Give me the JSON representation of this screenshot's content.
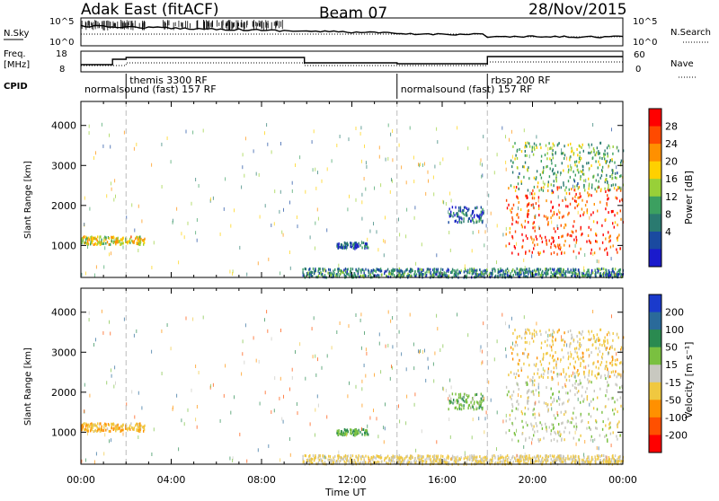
{
  "header": {
    "station": "Adak East (fitACF)",
    "beam": "Beam 07",
    "date": "28/Nov/2015"
  },
  "top_panels": {
    "nsky_label": "N.Sky",
    "nsky_ticks": [
      "10^5",
      "10^0"
    ],
    "nsearch_label": "N.Search",
    "nsearch_ticks": [
      "10^5",
      "10^0"
    ],
    "freq_label": "Freq.",
    "freq_unit": "[MHz]",
    "freq_ticks": [
      "18",
      "8"
    ],
    "nave_label": "Nave",
    "nave_ticks": [
      "60",
      "0"
    ],
    "cpid_label": "CPID",
    "cpid_segments": [
      {
        "label": "normalsound (fast) 157 RF",
        "start_hour": 0,
        "end_hour": 2
      },
      {
        "label": "themis 3300 RF",
        "start_hour": 2,
        "end_hour": 14
      },
      {
        "label": "normalsound (fast) 157 RF",
        "start_hour": 14,
        "end_hour": 18
      },
      {
        "label": "rbsp 200 RF",
        "start_hour": 18,
        "end_hour": 24
      }
    ]
  },
  "time_axis": {
    "label": "Time UT",
    "ticks": [
      "00:00",
      "04:00",
      "08:00",
      "12:00",
      "16:00",
      "20:00",
      "00:00"
    ]
  },
  "power_colorbar": {
    "label": "Power [dB]",
    "ticks": [
      "28",
      "24",
      "20",
      "16",
      "12",
      "8",
      "4"
    ],
    "colors": [
      "#ff0000",
      "#ff4a00",
      "#ff9000",
      "#ffd000",
      "#98d038",
      "#3ca060",
      "#2a7a70",
      "#1a4aa0",
      "#1a1acc"
    ]
  },
  "velocity_colorbar": {
    "label": "Velocity [m s⁻¹]",
    "ticks": [
      "200",
      "100",
      "50",
      "15",
      "-15",
      "-50",
      "-100",
      "-200"
    ],
    "colors": [
      "#1a3acc",
      "#2a6a9a",
      "#2a8a50",
      "#7ac040",
      "#c8c8c0",
      "#f0c840",
      "#ff9000",
      "#ff5000",
      "#ff0000"
    ]
  },
  "chart_data": [
    {
      "type": "heatmap",
      "ylabel": "Slant Range [km]",
      "xlabel": "",
      "x_range_hours": [
        0,
        24
      ],
      "ylim": [
        200,
        4600
      ],
      "yticks": [
        "4000",
        "3000",
        "2000",
        "1000"
      ],
      "cpid_change_hours": [
        2,
        14,
        18
      ],
      "features": [
        {
          "start_hour": 0.0,
          "end_hour": 2.8,
          "range_km": [
            1050,
            1250
          ],
          "power_db": 18
        },
        {
          "start_hour": 9.8,
          "end_hour": 24.0,
          "range_km": [
            230,
            450
          ],
          "power_db": 8
        },
        {
          "start_hour": 11.3,
          "end_hour": 12.7,
          "range_km": [
            950,
            1100
          ],
          "power_db": 6
        },
        {
          "start_hour": 16.2,
          "end_hour": 17.8,
          "range_km": [
            1600,
            2000
          ],
          "power_db": 6
        },
        {
          "start_hour": 18.8,
          "end_hour": 24.0,
          "range_km": [
            800,
            2500
          ],
          "power_db": 26
        },
        {
          "start_hour": 19.0,
          "end_hour": 24.0,
          "range_km": [
            2400,
            3600
          ],
          "power_db": 12
        }
      ]
    },
    {
      "type": "heatmap",
      "ylabel": "Slant Range [km]",
      "xlabel": "Time UT",
      "x_range_hours": [
        0,
        24
      ],
      "ylim": [
        200,
        4600
      ],
      "yticks": [
        "4000",
        "3000",
        "2000",
        "1000"
      ],
      "cpid_change_hours": [
        2,
        14,
        18
      ],
      "features": [
        {
          "start_hour": 0.0,
          "end_hour": 2.8,
          "range_km": [
            1050,
            1250
          ],
          "velocity_mps": -40
        },
        {
          "start_hour": 9.8,
          "end_hour": 24.0,
          "range_km": [
            230,
            450
          ],
          "velocity_mps": -20
        },
        {
          "start_hour": 11.3,
          "end_hour": 12.7,
          "range_km": [
            950,
            1100
          ],
          "velocity_mps": 50
        },
        {
          "start_hour": 16.2,
          "end_hour": 17.8,
          "range_km": [
            1600,
            2000
          ],
          "velocity_mps": 40
        },
        {
          "start_hour": 18.8,
          "end_hour": 24.0,
          "range_km": [
            800,
            2500
          ],
          "velocity_mps": 0
        },
        {
          "start_hour": 19.0,
          "end_hour": 24.0,
          "range_km": [
            2400,
            3600
          ],
          "velocity_mps": -30
        }
      ]
    }
  ]
}
